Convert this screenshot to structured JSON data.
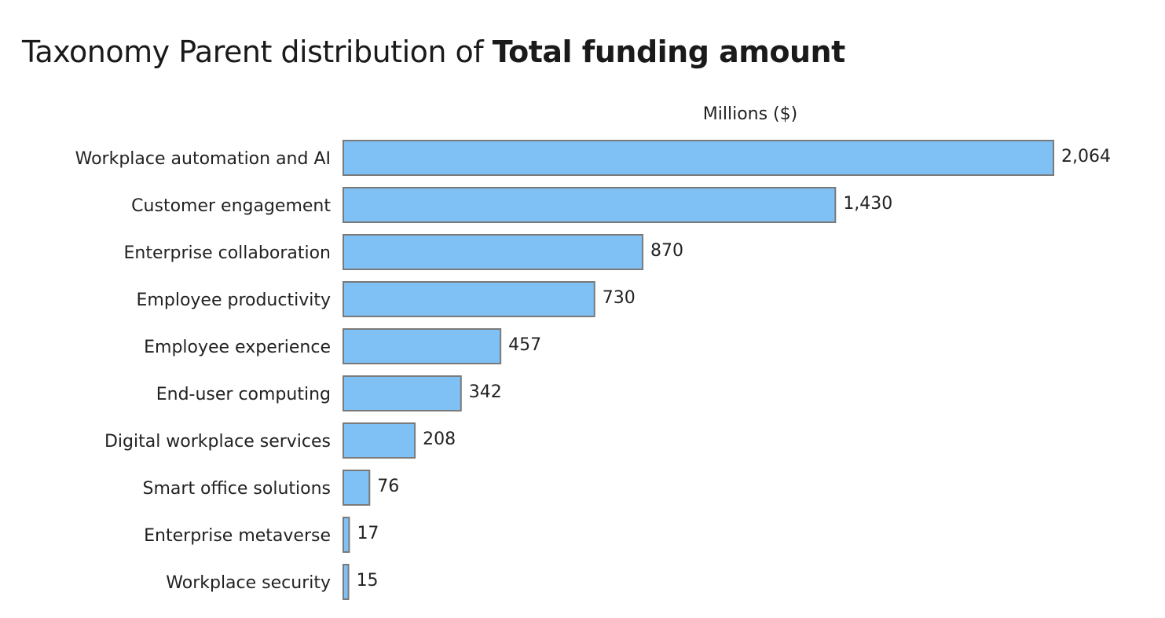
{
  "chart_data": {
    "type": "bar",
    "orientation": "horizontal",
    "title_prefix": "Taxonomy Parent distribution of ",
    "title_emphasis": "Total funding amount",
    "axis_label": "Millions ($)",
    "categories": [
      "Workplace automation and AI",
      "Customer engagement",
      "Enterprise collaboration",
      "Employee productivity",
      "Employee experience",
      "End-user computing",
      "Digital workplace services",
      "Smart office solutions",
      "Enterprise metaverse",
      "Workplace security"
    ],
    "values": [
      2064,
      1430,
      870,
      730,
      457,
      342,
      208,
      76,
      17,
      15
    ],
    "value_labels": [
      "2,064",
      "1,430",
      "870",
      "730",
      "457",
      "342",
      "208",
      "76",
      "17",
      "15"
    ],
    "xlim": [
      0,
      2064
    ],
    "grid": false,
    "legend": "none",
    "bar_color": "#7fc1f5",
    "bar_edge_color": "#7a7a7a"
  }
}
